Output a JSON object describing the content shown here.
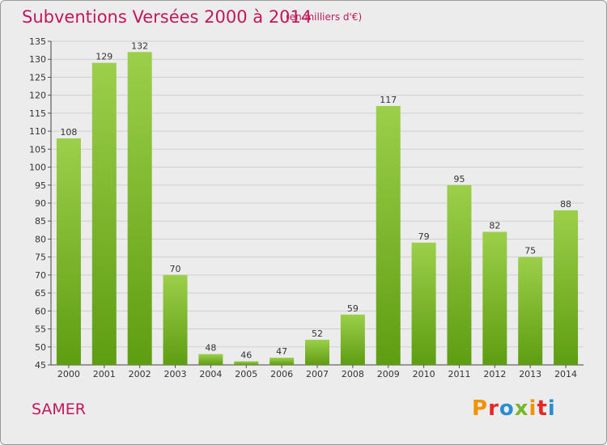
{
  "header": {
    "title": "Subventions Versées 2000 à 2014",
    "unit_note": "(en milliers d'€)"
  },
  "footer": {
    "commune": "SAMER",
    "logo_text": "Proxiti"
  },
  "colors": {
    "accent": "#c2185b",
    "bar_light": "#9ccf4a",
    "bar_dark": "#5e9d12",
    "grid": "#d0d0d0",
    "logo": [
      "#f39200",
      "#e8272a",
      "#2a8fd1",
      "#76b82a",
      "#f39200",
      "#e8272a",
      "#2a8fd1"
    ]
  },
  "chart_data": {
    "type": "bar",
    "categories": [
      "2000",
      "2001",
      "2002",
      "2003",
      "2004",
      "2005",
      "2006",
      "2007",
      "2008",
      "2009",
      "2010",
      "2011",
      "2012",
      "2013",
      "2014"
    ],
    "values": [
      108,
      129,
      132,
      70,
      48,
      46,
      47,
      52,
      59,
      117,
      79,
      95,
      82,
      75,
      88
    ],
    "title": "Subventions Versées 2000 à 2014",
    "subtitle": "(en milliers d'€)",
    "xlabel": "",
    "ylabel": "",
    "ylim": [
      45,
      135
    ],
    "yticks": [
      45,
      50,
      55,
      60,
      65,
      70,
      75,
      80,
      85,
      90,
      95,
      100,
      105,
      110,
      115,
      120,
      125,
      130,
      135
    ],
    "grid": true,
    "data_labels": true
  }
}
